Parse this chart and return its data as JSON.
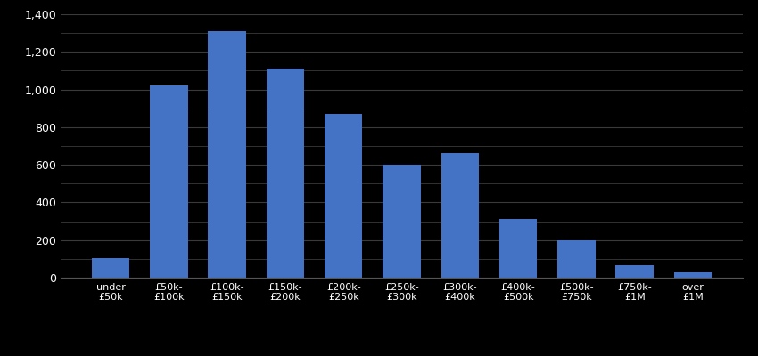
{
  "categories": [
    "under\n£50k",
    "£50k-\n£100k",
    "£100k-\n£150k",
    "£150k-\n£200k",
    "£200k-\n£250k",
    "£250k-\n£300k",
    "£300k-\n£400k",
    "£400k-\n£500k",
    "£500k-\n£750k",
    "£750k-\n£1M",
    "over\n£1M"
  ],
  "values": [
    105,
    1020,
    1310,
    1110,
    870,
    600,
    660,
    310,
    200,
    68,
    28
  ],
  "bar_color": "#4472c4",
  "background_color": "#000000",
  "text_color": "#ffffff",
  "grid_color": "#3a3a3a",
  "ylim": [
    0,
    1400
  ],
  "yticks_major": [
    0,
    200,
    400,
    600,
    800,
    1000,
    1200,
    1400
  ],
  "yticks_minor": [
    100,
    300,
    500,
    700,
    900,
    1100,
    1300
  ]
}
